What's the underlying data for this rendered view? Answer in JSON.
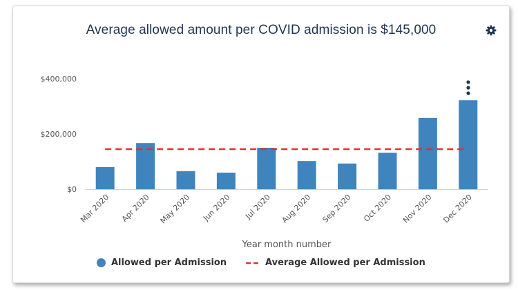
{
  "header": {
    "title": "Average allowed amount per COVID admission is $145,000"
  },
  "icons": {
    "settings": "gear-icon",
    "menu": "vertical-dots-icon"
  },
  "colors": {
    "bar": "#3f84bd",
    "average_line": "#e03131",
    "title": "#1f3550"
  },
  "chart_data": {
    "type": "bar",
    "categories": [
      "Mar 2020",
      "Apr 2020",
      "May 2020",
      "Jun 2020",
      "Jul 2020",
      "Aug 2020",
      "Sep 2020",
      "Oct 2020",
      "Nov 2020",
      "Dec 2020"
    ],
    "series": [
      {
        "name": "Allowed per Admission",
        "type": "bar",
        "values": [
          80000,
          167000,
          65000,
          60000,
          150000,
          102000,
          93000,
          132000,
          258000,
          322000
        ]
      },
      {
        "name": "Average Allowed per Admission",
        "type": "line",
        "style": "dashed",
        "values": [
          145000,
          145000,
          145000,
          145000,
          145000,
          145000,
          145000,
          145000,
          145000,
          145000
        ]
      }
    ],
    "title": "Average allowed amount per COVID admission is $145,000",
    "xlabel": "Year month number",
    "ylabel": "",
    "ylim": [
      0,
      400000
    ],
    "yticks": [
      0,
      200000,
      400000
    ],
    "ytick_labels": [
      "$0",
      "$200,000",
      "$400,000"
    ],
    "grid": false,
    "legend": "bottom-center"
  }
}
